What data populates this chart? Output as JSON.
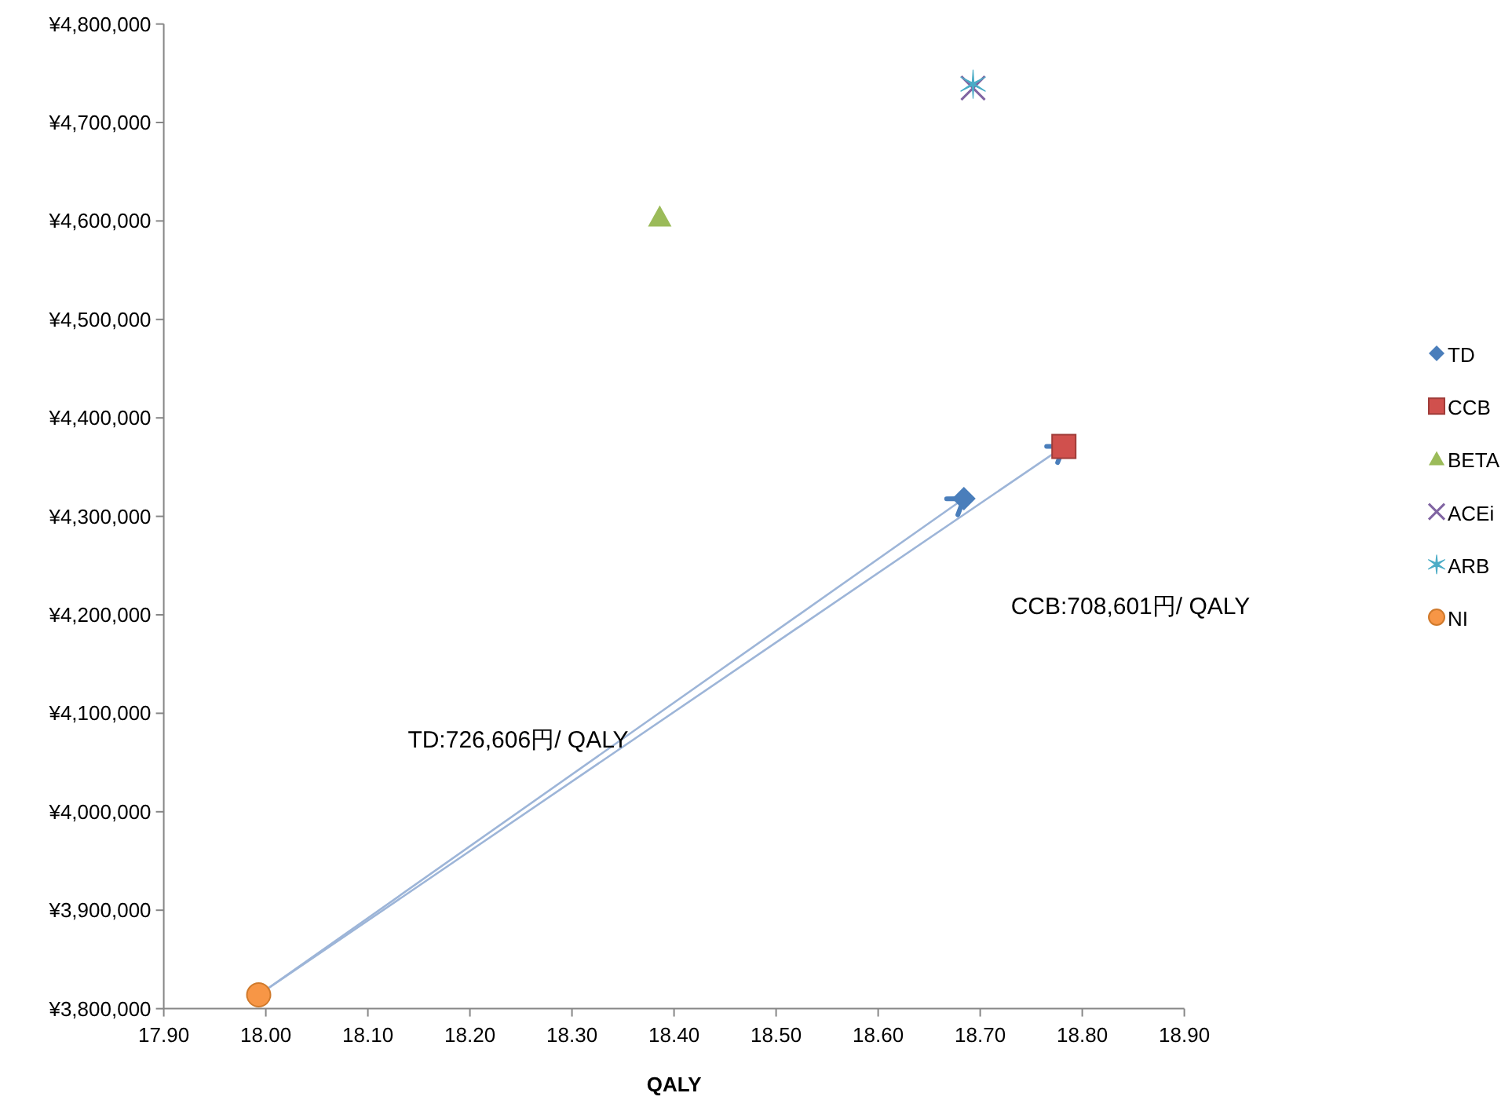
{
  "chart_data": {
    "type": "scatter",
    "xlabel": "QALY",
    "xlim": [
      17.9,
      18.9
    ],
    "xticks": [
      {
        "value": 17.9,
        "label": "17.90"
      },
      {
        "value": 18.0,
        "label": "18.00"
      },
      {
        "value": 18.1,
        "label": "18.10"
      },
      {
        "value": 18.2,
        "label": "18.20"
      },
      {
        "value": 18.3,
        "label": "18.30"
      },
      {
        "value": 18.4,
        "label": "18.40"
      },
      {
        "value": 18.5,
        "label": "18.50"
      },
      {
        "value": 18.6,
        "label": "18.60"
      },
      {
        "value": 18.7,
        "label": "18.70"
      },
      {
        "value": 18.8,
        "label": "18.80"
      },
      {
        "value": 18.9,
        "label": "18.90"
      }
    ],
    "ylim": [
      3800000,
      4800000
    ],
    "yticks": [
      {
        "value": 3800000,
        "label": "¥3,800,000"
      },
      {
        "value": 3900000,
        "label": "¥3,900,000"
      },
      {
        "value": 4000000,
        "label": "¥4,000,000"
      },
      {
        "value": 4100000,
        "label": "¥4,100,000"
      },
      {
        "value": 4200000,
        "label": "¥4,200,000"
      },
      {
        "value": 4300000,
        "label": "¥4,300,000"
      },
      {
        "value": 4400000,
        "label": "¥4,400,000"
      },
      {
        "value": 4500000,
        "label": "¥4,500,000"
      },
      {
        "value": 4600000,
        "label": "¥4,600,000"
      },
      {
        "value": 4700000,
        "label": "¥4,700,000"
      },
      {
        "value": 4800000,
        "label": "¥4,800,000"
      }
    ],
    "grid": false,
    "legend": "right",
    "series": [
      {
        "name": "TD",
        "color": "#4a7ebb",
        "marker": "diamond",
        "x": [
          18.684
        ],
        "values": [
          4318000
        ]
      },
      {
        "name": "CCB",
        "color": "#d0504d",
        "marker": "square",
        "x": [
          18.782
        ],
        "values": [
          4371000
        ]
      },
      {
        "name": "BETA",
        "color": "#9bbb59",
        "marker": "triangle",
        "x": [
          18.386
        ],
        "values": [
          4604000
        ]
      },
      {
        "name": "ACEi",
        "color": "#8064a2",
        "marker": "cross",
        "x": [
          18.693
        ],
        "values": [
          4735000
        ]
      },
      {
        "name": "ARB",
        "color": "#4bacc6",
        "x": [
          18.693
        ],
        "values": [
          4739000
        ]
      },
      {
        "name": "NI",
        "color": "#f79646",
        "marker": "circle",
        "x": [
          17.993
        ],
        "values": [
          3814000
        ]
      },
      {
        "type": "line",
        "color": "#9db5d8",
        "x": [
          17.993,
          18.684
        ],
        "values": [
          3814000,
          4318000
        ]
      },
      {
        "type": "line",
        "color": "#9db5d8",
        "x": [
          17.993,
          18.782
        ],
        "values": [
          3814000,
          4371000
        ]
      }
    ],
    "annotations": [
      "TD:726,606円/ QALY",
      "CCB:708,601円/ QALY"
    ]
  }
}
